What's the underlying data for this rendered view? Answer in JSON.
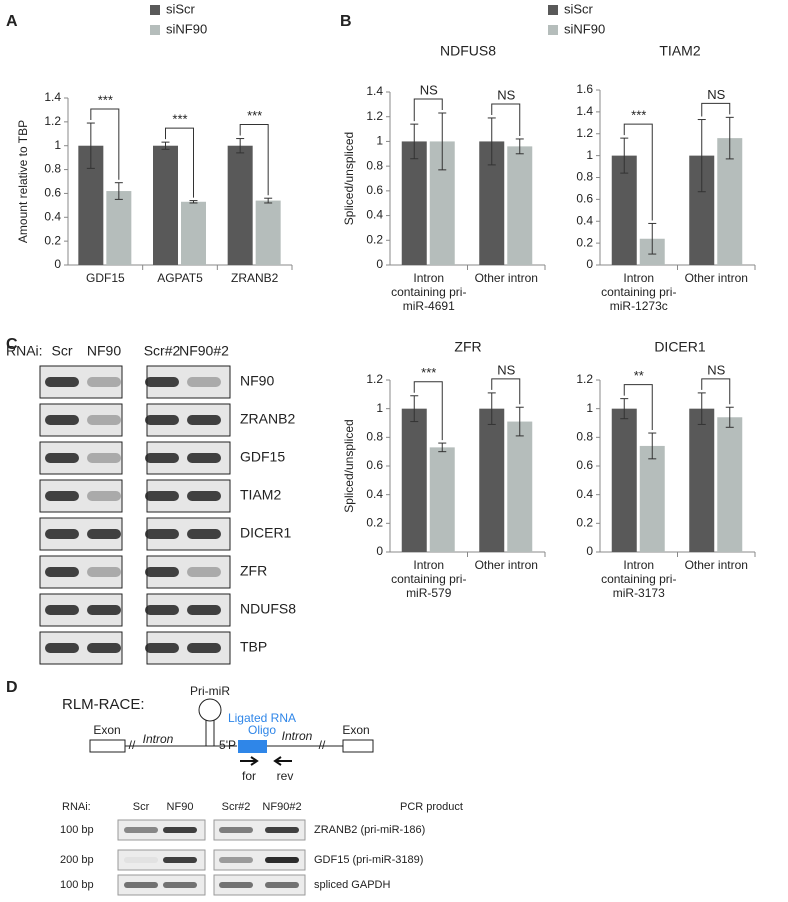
{
  "panel_labels": [
    "A",
    "B",
    "C",
    "D"
  ],
  "chart_data": [
    {
      "type": "bar",
      "ylabel": "Amount relative to TBP",
      "categories": [
        "GDF15",
        "AGPAT5",
        "ZRANB2"
      ],
      "series": [
        {
          "name": "siScr",
          "color": "#595959",
          "values": [
            1,
            1,
            1
          ],
          "errors": [
            0.19,
            0.03,
            0.06
          ]
        },
        {
          "name": "siNF90",
          "color": "#b5bdbb",
          "values": [
            0.62,
            0.53,
            0.54
          ],
          "errors": [
            0.07,
            0.01,
            0.02
          ]
        }
      ],
      "ylim": [
        0,
        1.4
      ],
      "yticks": [
        0,
        0.2,
        0.4,
        0.6,
        0.8,
        1,
        1.2,
        1.4
      ],
      "significance": [
        "***",
        "***",
        "***"
      ]
    },
    {
      "type": "bar",
      "title": "NDFUS8",
      "ylabel": "Spliced/unspliced",
      "categories": [
        "Intron containing pri-miR-4691",
        "Other intron"
      ],
      "series": [
        {
          "name": "siScr",
          "color": "#595959",
          "values": [
            1,
            1
          ],
          "errors": [
            0.14,
            0.19
          ]
        },
        {
          "name": "siNF90",
          "color": "#b5bdbb",
          "values": [
            1.0,
            0.96
          ],
          "errors": [
            0.23,
            0.06
          ]
        }
      ],
      "ylim": [
        0,
        1.4
      ],
      "yticks": [
        0,
        0.2,
        0.4,
        0.6,
        0.8,
        1,
        1.2,
        1.4
      ],
      "significance": [
        "NS",
        "NS"
      ]
    },
    {
      "type": "bar",
      "title": "TIAM2",
      "categories": [
        "Intron containing pri-miR-1273c",
        "Other intron"
      ],
      "series": [
        {
          "color": "#595959",
          "values": [
            1,
            1
          ],
          "errors": [
            0.16,
            0.33
          ]
        },
        {
          "color": "#b5bdbb",
          "values": [
            0.24,
            1.16
          ],
          "errors": [
            0.14,
            0.19
          ]
        }
      ],
      "ylim": [
        0,
        1.6
      ],
      "yticks": [
        0,
        0.2,
        0.4,
        0.6,
        0.8,
        1,
        1.2,
        1.4,
        1.6
      ],
      "significance": [
        "***",
        "NS"
      ]
    },
    {
      "type": "bar",
      "title": "ZFR",
      "ylabel": "Spliced/unspliced",
      "categories": [
        "Intron containing pri-miR-579",
        "Other intron"
      ],
      "series": [
        {
          "color": "#595959",
          "values": [
            1,
            1
          ],
          "errors": [
            0.09,
            0.11
          ]
        },
        {
          "color": "#b5bdbb",
          "values": [
            0.73,
            0.91
          ],
          "errors": [
            0.03,
            0.1
          ]
        }
      ],
      "ylim": [
        0,
        1.2
      ],
      "yticks": [
        0,
        0.2,
        0.4,
        0.6,
        0.8,
        1,
        1.2
      ],
      "significance": [
        "***",
        "NS"
      ]
    },
    {
      "type": "bar",
      "title": "DICER1",
      "categories": [
        "Intron containing pri-miR-3173",
        "Other intron"
      ],
      "series": [
        {
          "color": "#595959",
          "values": [
            1,
            1
          ],
          "errors": [
            0.07,
            0.11
          ]
        },
        {
          "color": "#b5bdbb",
          "values": [
            0.74,
            0.94
          ],
          "errors": [
            0.09,
            0.07
          ]
        }
      ],
      "ylim": [
        0,
        1.2
      ],
      "yticks": [
        0,
        0.2,
        0.4,
        0.6,
        0.8,
        1,
        1.2
      ],
      "significance": [
        "**",
        "NS"
      ]
    }
  ],
  "blots": {
    "rnai_label": "RNAi:",
    "lanes": [
      "Scr",
      "NF90",
      "Scr#2",
      "NF90#2"
    ],
    "rows": [
      "NF90",
      "ZRANB2",
      "GDF15",
      "TIAM2",
      "DICER1",
      "ZFR",
      "NDUFS8",
      "TBP"
    ]
  },
  "diagram": {
    "title": "RLM-RACE:",
    "pri_mir": "Pri-miR",
    "exon_left": "Exon",
    "intron_left": "Intron",
    "five_p": "5'P",
    "oligo_line1": "Ligated RNA",
    "oligo_line2": "Oligo",
    "intron_right": "Intron",
    "exon_right": "Exon",
    "forward": "for",
    "reverse": "rev"
  },
  "gel": {
    "rnai_label": "RNAi:",
    "lanes": [
      "Scr",
      "NF90",
      "Scr#2",
      "NF90#2"
    ],
    "product_header": "PCR product",
    "rows": [
      {
        "size": "100 bp",
        "product": "ZRANB2 (pri-miR-186)"
      },
      {
        "size": "200 bp",
        "product": "GDF15 (pri-miR-3189)"
      },
      {
        "size": "100 bp",
        "product": "spliced GAPDH"
      }
    ]
  }
}
